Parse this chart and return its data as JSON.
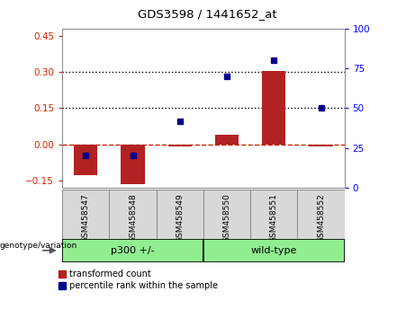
{
  "title": "GDS3598 / 1441652_at",
  "samples": [
    "GSM458547",
    "GSM458548",
    "GSM458549",
    "GSM458550",
    "GSM458551",
    "GSM458552"
  ],
  "group_configs": [
    {
      "indices": [
        0,
        1,
        2
      ],
      "label": "p300 +/-",
      "color": "#90EE90"
    },
    {
      "indices": [
        3,
        4,
        5
      ],
      "label": "wild-type",
      "color": "#90EE90"
    }
  ],
  "red_values": [
    -0.13,
    -0.165,
    -0.01,
    0.04,
    0.305,
    -0.01
  ],
  "blue_values_pct": [
    20,
    20,
    42,
    70,
    80,
    50
  ],
  "ylim_left": [
    -0.18,
    0.48
  ],
  "ylim_right": [
    0,
    100
  ],
  "yticks_left": [
    -0.15,
    0.0,
    0.15,
    0.3,
    0.45
  ],
  "yticks_right": [
    0,
    25,
    50,
    75,
    100
  ],
  "hlines": [
    0.15,
    0.3
  ],
  "bar_width": 0.5,
  "bar_color": "#B22222",
  "dot_color": "#00008B",
  "label_red": "transformed count",
  "label_blue": "percentile rank within the sample",
  "genotype_label": "genotype/variation"
}
